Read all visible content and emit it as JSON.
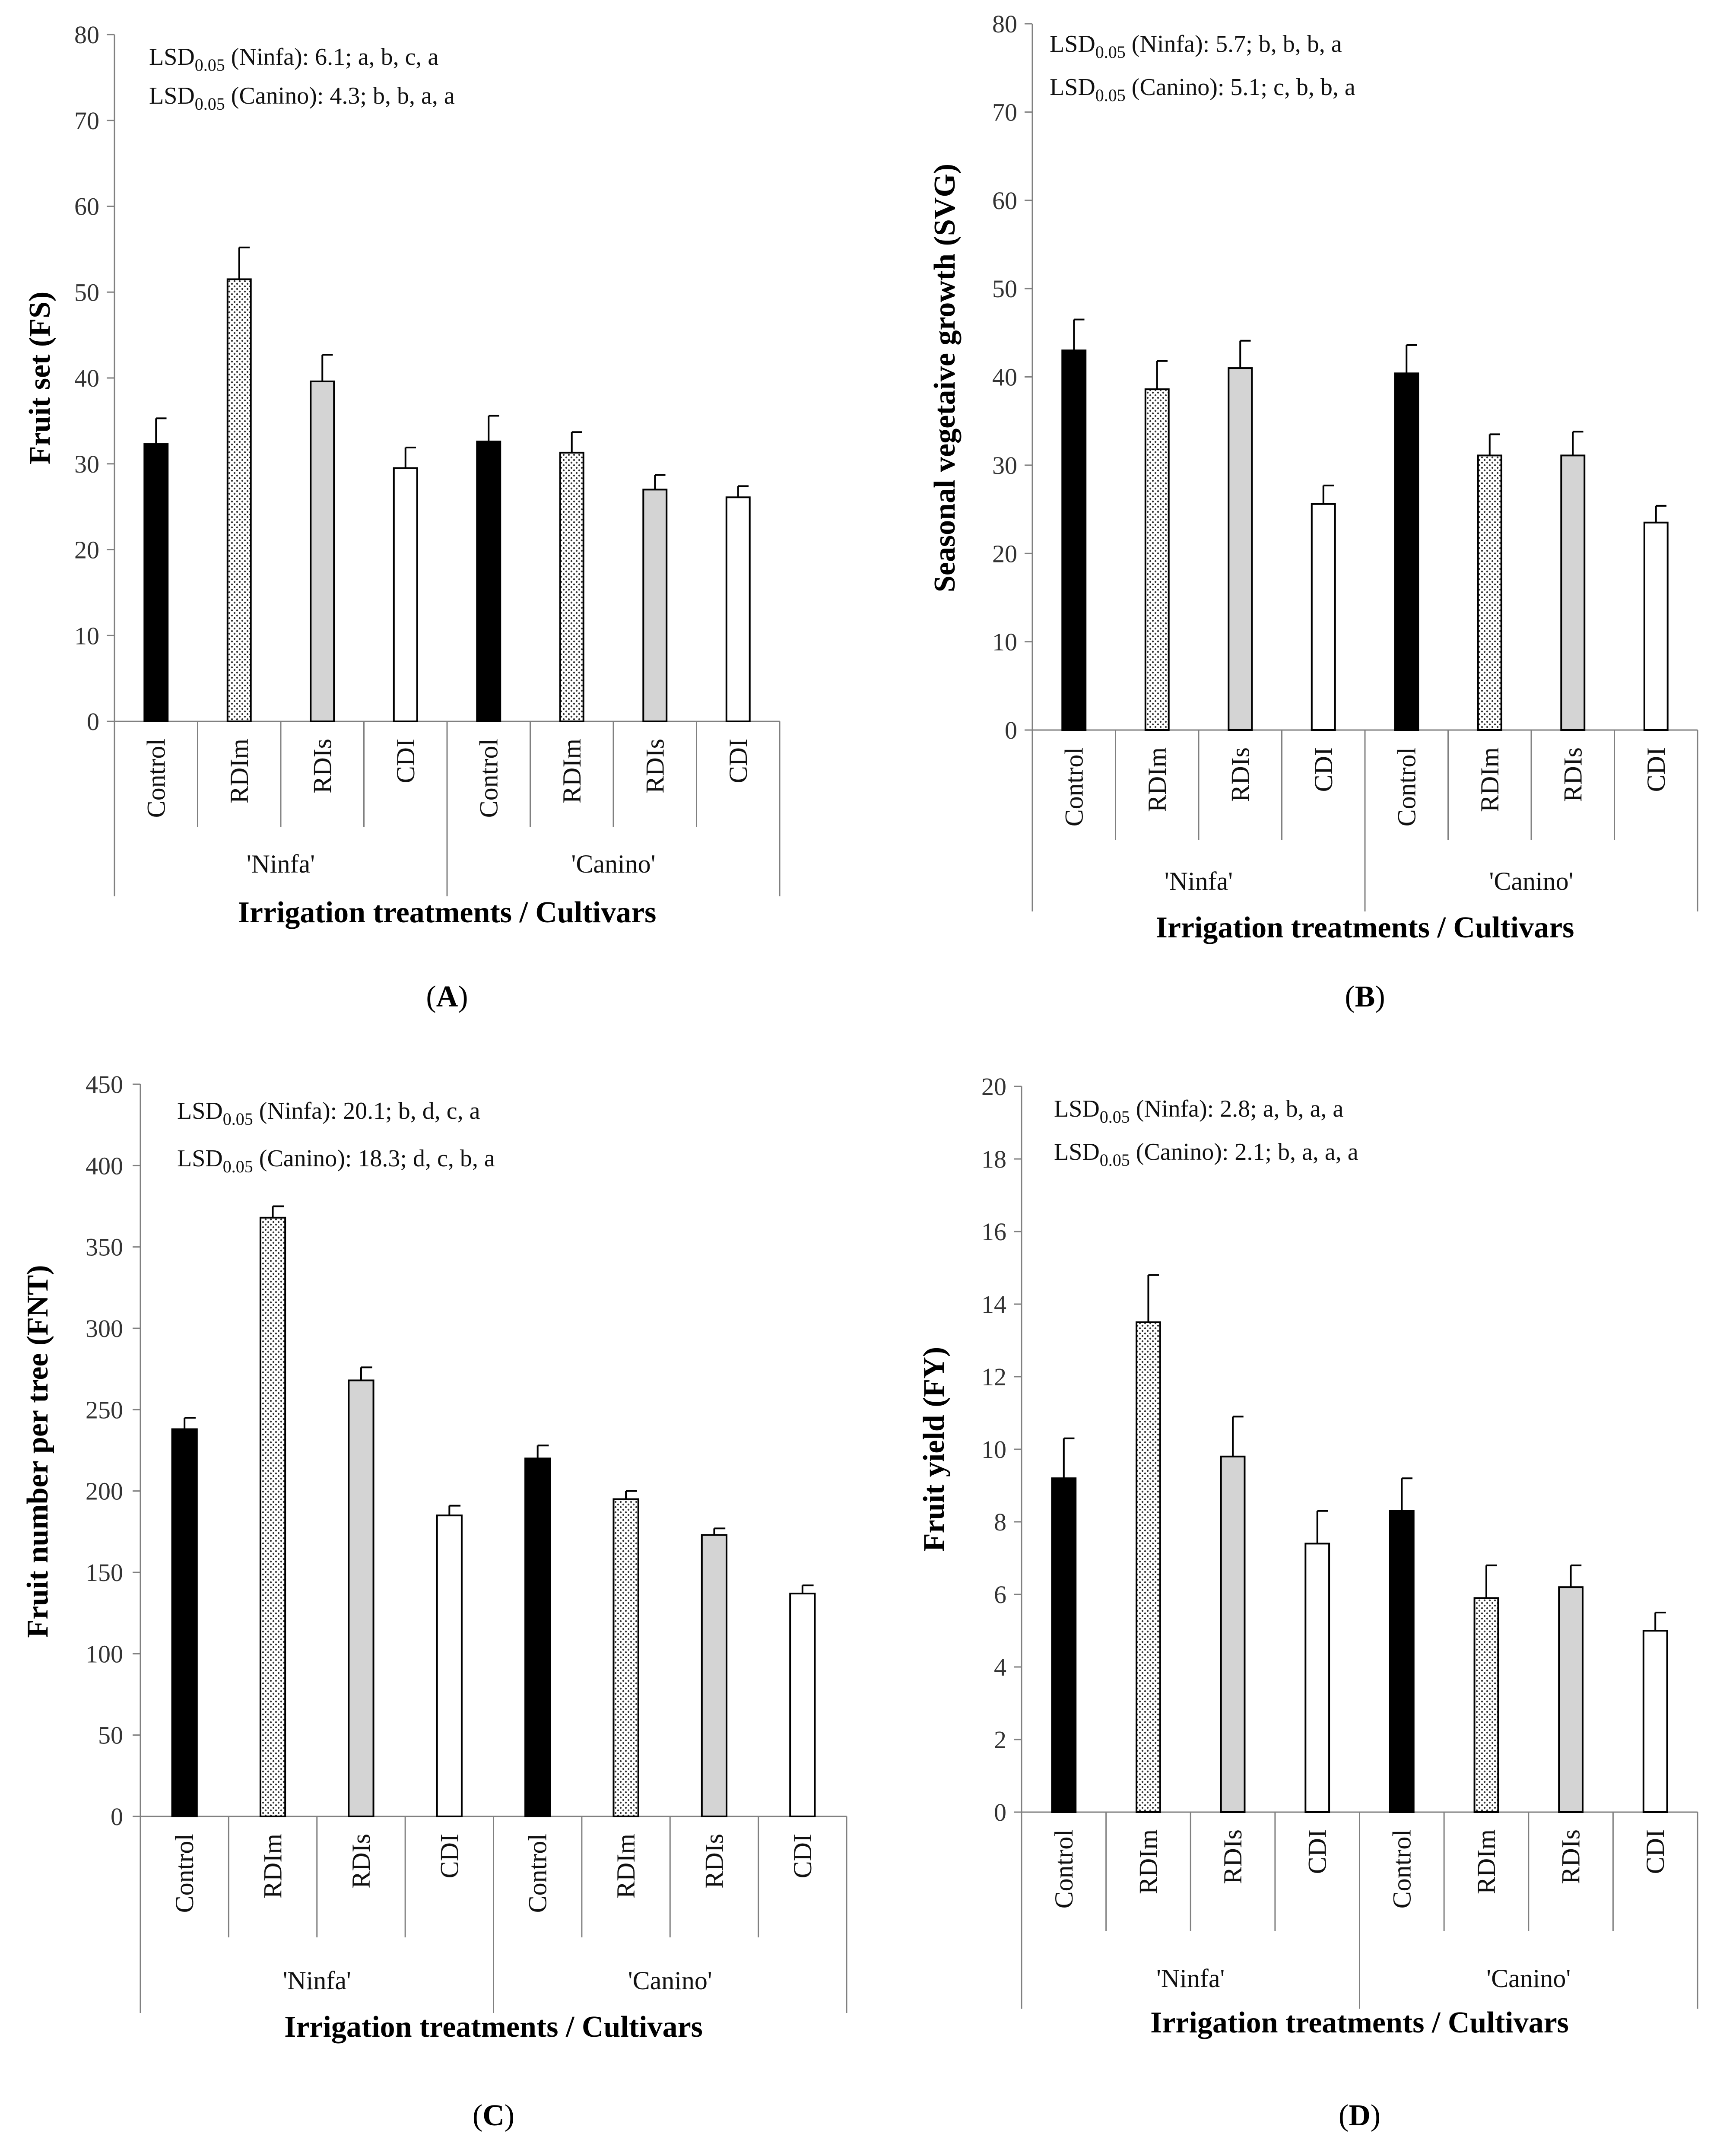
{
  "colors": {
    "Control": "#000000",
    "RDIm": "pattern-dots",
    "RDIs": "#d4d4d4",
    "CDI": "#ffffff",
    "axis": "#808080",
    "bar_edge": "#000000"
  },
  "chart_data": [
    {
      "id": "A",
      "type": "bar",
      "caption_label": "A",
      "categories": [
        "Control",
        "RDIm",
        "RDIs",
        "CDI",
        "Control",
        "RDIm",
        "RDIs",
        "CDI"
      ],
      "groups": [
        "'Ninfa'",
        "'Canino'"
      ],
      "values": [
        32.3,
        51.5,
        39.6,
        29.5,
        32.6,
        31.3,
        27.0,
        26.1
      ],
      "errors": [
        3.0,
        3.7,
        3.1,
        2.4,
        3.0,
        2.4,
        1.7,
        1.3
      ],
      "xlabel": "Irrigation treatments / Cultivars",
      "ylabel": "Fruit set (FS)",
      "ylim": [
        0,
        80
      ],
      "yticks": [
        0,
        10,
        20,
        30,
        40,
        50,
        60,
        70,
        80
      ],
      "annotations": [
        {
          "pre": "LSD",
          "sub": "0.05",
          "post": " (Ninfa): 6.1; a, b, c, a"
        },
        {
          "pre": "LSD",
          "sub": "0.05",
          "post": " (Canino): 4.3; b, b, a, a"
        }
      ]
    },
    {
      "id": "B",
      "type": "bar",
      "caption_label": "B",
      "categories": [
        "Control",
        "RDIm",
        "RDIs",
        "CDI",
        "Control",
        "RDIm",
        "RDIs",
        "CDI"
      ],
      "groups": [
        "'Ninfa'",
        "'Canino'"
      ],
      "values": [
        43.0,
        38.6,
        41.0,
        25.6,
        40.4,
        31.1,
        31.1,
        23.5
      ],
      "errors": [
        3.5,
        3.2,
        3.1,
        2.1,
        3.2,
        2.4,
        2.7,
        1.9
      ],
      "xlabel": "Irrigation treatments / Cultivars",
      "ylabel": "Seasonal vegetaive growth (SVG)",
      "ylim": [
        0,
        80
      ],
      "yticks": [
        0,
        10,
        20,
        30,
        40,
        50,
        60,
        70,
        80
      ],
      "annotations": [
        {
          "pre": "LSD",
          "sub": "0.05",
          "post": " (Ninfa): 5.7; b, b, b, a"
        },
        {
          "pre": "LSD",
          "sub": "0.05",
          "post": " (Canino): 5.1; c, b, b, a"
        }
      ]
    },
    {
      "id": "C",
      "type": "bar",
      "caption_label": "C",
      "categories": [
        "Control",
        "RDIm",
        "RDIs",
        "CDI",
        "Control",
        "RDIm",
        "RDIs",
        "CDI"
      ],
      "groups": [
        "'Ninfa'",
        "'Canino'"
      ],
      "values": [
        238,
        368,
        268,
        185,
        220,
        195,
        173,
        137
      ],
      "errors": [
        7,
        7,
        8,
        6,
        8,
        5,
        4,
        5
      ],
      "xlabel": "Irrigation treatments / Cultivars",
      "ylabel": "Fruit number per tree (FNT)",
      "ylim": [
        0,
        450
      ],
      "yticks": [
        0,
        50,
        100,
        150,
        200,
        250,
        300,
        350,
        400,
        450
      ],
      "annotations": [
        {
          "pre": "LSD",
          "sub": "0.05",
          "post": " (Ninfa): 20.1; b, d, c, a"
        },
        {
          "pre": "LSD",
          "sub": "0.05",
          "post": " (Canino): 18.3; d, c, b, a"
        }
      ]
    },
    {
      "id": "D",
      "type": "bar",
      "caption_label": "D",
      "categories": [
        "Control",
        "RDIm",
        "RDIs",
        "CDI",
        "Control",
        "RDIm",
        "RDIs",
        "CDI"
      ],
      "groups": [
        "'Ninfa'",
        "'Canino'"
      ],
      "values": [
        9.2,
        13.5,
        9.8,
        7.4,
        8.3,
        5.9,
        6.2,
        5.0
      ],
      "errors": [
        1.1,
        1.3,
        1.1,
        0.9,
        0.9,
        0.9,
        0.6,
        0.5
      ],
      "xlabel": "Irrigation treatments / Cultivars",
      "ylabel": "Fruit yield (FY)",
      "ylim": [
        0,
        20
      ],
      "yticks": [
        0,
        2,
        4,
        6,
        8,
        10,
        12,
        14,
        16,
        18,
        20
      ],
      "annotations": [
        {
          "pre": "LSD",
          "sub": "0.05",
          "post": " (Ninfa): 2.8; a, b, a, a"
        },
        {
          "pre": "LSD",
          "sub": "0.05",
          "post": " (Canino): 2.1; b, a, a, a"
        }
      ]
    }
  ]
}
